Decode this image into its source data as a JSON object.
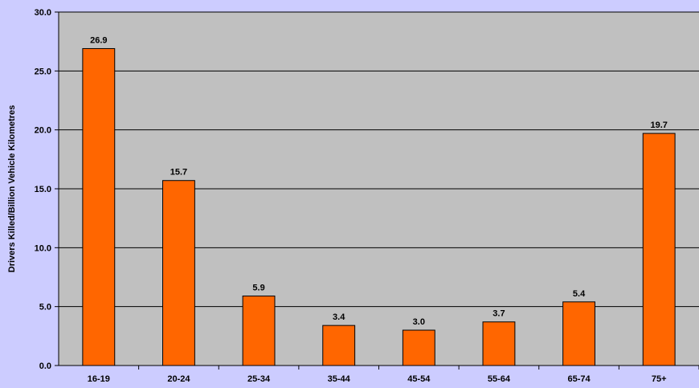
{
  "chart_data": {
    "type": "bar",
    "title": "",
    "xlabel": "",
    "ylabel": "Drivers Killed/Billion Vehicle Kilometres",
    "categories": [
      "16-19",
      "20-24",
      "25-34",
      "35-44",
      "45-54",
      "55-64",
      "65-74",
      "75+"
    ],
    "values": [
      26.9,
      15.7,
      5.9,
      3.4,
      3.0,
      3.7,
      5.4,
      19.7
    ],
    "value_labels": [
      "26.9",
      "15.7",
      "5.9",
      "3.4",
      "3.0",
      "3.7",
      "5.4",
      "19.7"
    ],
    "yticks": [
      "0.0",
      "5.0",
      "10.0",
      "15.0",
      "20.0",
      "25.0",
      "30.0"
    ],
    "ylim": [
      0,
      30
    ],
    "grid": true,
    "legend": "none",
    "colors": {
      "background": "#ccccff",
      "plot_area": "#c0c0c0",
      "bar_fill": "#ff6600",
      "bar_stroke": "#000000",
      "grid": "#000000"
    }
  }
}
